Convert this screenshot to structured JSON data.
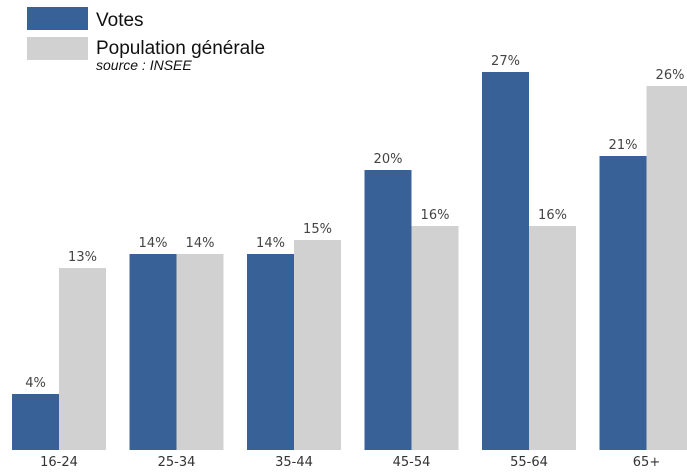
{
  "chart_data": {
    "type": "bar",
    "categories": [
      "16-24",
      "25-34",
      "35-44",
      "45-54",
      "55-64",
      "65+"
    ],
    "series": [
      {
        "name": "Votes",
        "values": [
          4,
          14,
          14,
          20,
          27,
          21
        ],
        "color": "#386198"
      },
      {
        "name": "Population générale",
        "values": [
          13,
          14,
          15,
          16,
          16,
          26
        ],
        "color": "#d1d1d1"
      }
    ],
    "value_suffix": "%",
    "annotation": "source : INSEE",
    "ylim": [
      0,
      28.5
    ],
    "grid": false,
    "legend_position": "top-left"
  }
}
